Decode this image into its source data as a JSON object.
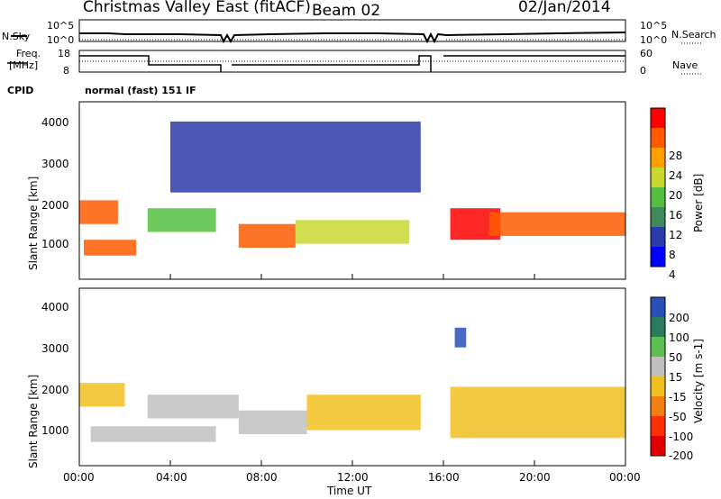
{
  "header": {
    "station": "Christmas Valley East (fitACF)",
    "beam": "Beam 02",
    "date": "02/Jan/2014"
  },
  "top_panels": {
    "nsky_label": "N.Sky",
    "nsky_ticks": [
      "10^5",
      "10^0"
    ],
    "nsearch_label": "N.Search",
    "nsearch_ticks": [
      "10^5",
      "10^0"
    ],
    "freq_label": "Freq.",
    "freq_unit": "[MHz]",
    "freq_ticks": [
      "18",
      "8"
    ],
    "nave_label": "Nave",
    "nave_ticks": [
      "60",
      "0"
    ],
    "cpid_label": "CPID",
    "cpid_value": "normal (fast) 151 IF"
  },
  "colors": {
    "power": [
      "#0000ff",
      "#2a3aa8",
      "#3f8a5a",
      "#55c040",
      "#c8d830",
      "#ffa000",
      "#ff5a00",
      "#ff0000"
    ],
    "velocity": [
      "#2850b8",
      "#2a7a60",
      "#5cc050",
      "#c0c0c0",
      "#f0c020",
      "#f08010",
      "#ff3000",
      "#e00000"
    ]
  },
  "colorbars": {
    "power": {
      "label": "Power [dB]",
      "ticks": [
        "28",
        "24",
        "20",
        "16",
        "12",
        "8",
        "4"
      ]
    },
    "velocity": {
      "label": "Velocity [m s-1]",
      "ticks": [
        "200",
        "100",
        "50",
        "15",
        "-15",
        "-50",
        "-100",
        "-200"
      ]
    }
  },
  "axes": {
    "ylabel": "Slant Range [km]",
    "xlabel": "Time UT",
    "y_ticks": [
      "4000",
      "3000",
      "2000",
      "1000"
    ],
    "x_ticks": [
      "00:00",
      "04:00",
      "08:00",
      "12:00",
      "16:00",
      "20:00",
      "00:00"
    ]
  },
  "chart_data": [
    {
      "type": "heatmap",
      "title": "Power",
      "xlabel": "Time UT",
      "ylabel": "Slant Range [km]",
      "xlim": [
        0,
        24
      ],
      "ylim": [
        0,
        4500
      ],
      "colorbar": {
        "label": "Power [dB]",
        "range": [
          0,
          32
        ]
      },
      "regions": [
        {
          "x": [
            0.0,
            1.7
          ],
          "y": [
            1400,
            2000
          ],
          "value": 26
        },
        {
          "x": [
            0.2,
            2.5
          ],
          "y": [
            600,
            1000
          ],
          "value": 24
        },
        {
          "x": [
            3.0,
            6.0
          ],
          "y": [
            1200,
            1800
          ],
          "value": 14
        },
        {
          "x": [
            7.0,
            9.5
          ],
          "y": [
            800,
            1400
          ],
          "value": 24
        },
        {
          "x": [
            9.5,
            14.5
          ],
          "y": [
            900,
            1500
          ],
          "value": 18
        },
        {
          "x": [
            16.3,
            18.5
          ],
          "y": [
            1000,
            1800
          ],
          "value": 28
        },
        {
          "x": [
            18.0,
            24.0
          ],
          "y": [
            1100,
            1700
          ],
          "value": 26
        },
        {
          "x": [
            4.0,
            15.0
          ],
          "y": [
            2200,
            4000
          ],
          "value": 6
        }
      ]
    },
    {
      "type": "heatmap",
      "title": "Velocity",
      "xlabel": "Time UT",
      "ylabel": "Slant Range [km]",
      "xlim": [
        0,
        24
      ],
      "ylim": [
        0,
        4500
      ],
      "colorbar": {
        "label": "Velocity [m s-1]",
        "range": [
          -250,
          250
        ]
      },
      "regions": [
        {
          "x": [
            0.0,
            2.0
          ],
          "y": [
            1500,
            2100
          ],
          "value": 0
        },
        {
          "x": [
            0.5,
            6.0
          ],
          "y": [
            600,
            1000
          ],
          "value": 40
        },
        {
          "x": [
            3.0,
            7.0
          ],
          "y": [
            1200,
            1800
          ],
          "value": 60
        },
        {
          "x": [
            7.0,
            10.0
          ],
          "y": [
            800,
            1400
          ],
          "value": 40
        },
        {
          "x": [
            10.0,
            15.0
          ],
          "y": [
            900,
            1800
          ],
          "value": -40
        },
        {
          "x": [
            16.3,
            24.0
          ],
          "y": [
            700,
            2000
          ],
          "value": 0
        },
        {
          "x": [
            16.5,
            17.0
          ],
          "y": [
            3000,
            3500
          ],
          "value": 200
        }
      ]
    }
  ]
}
